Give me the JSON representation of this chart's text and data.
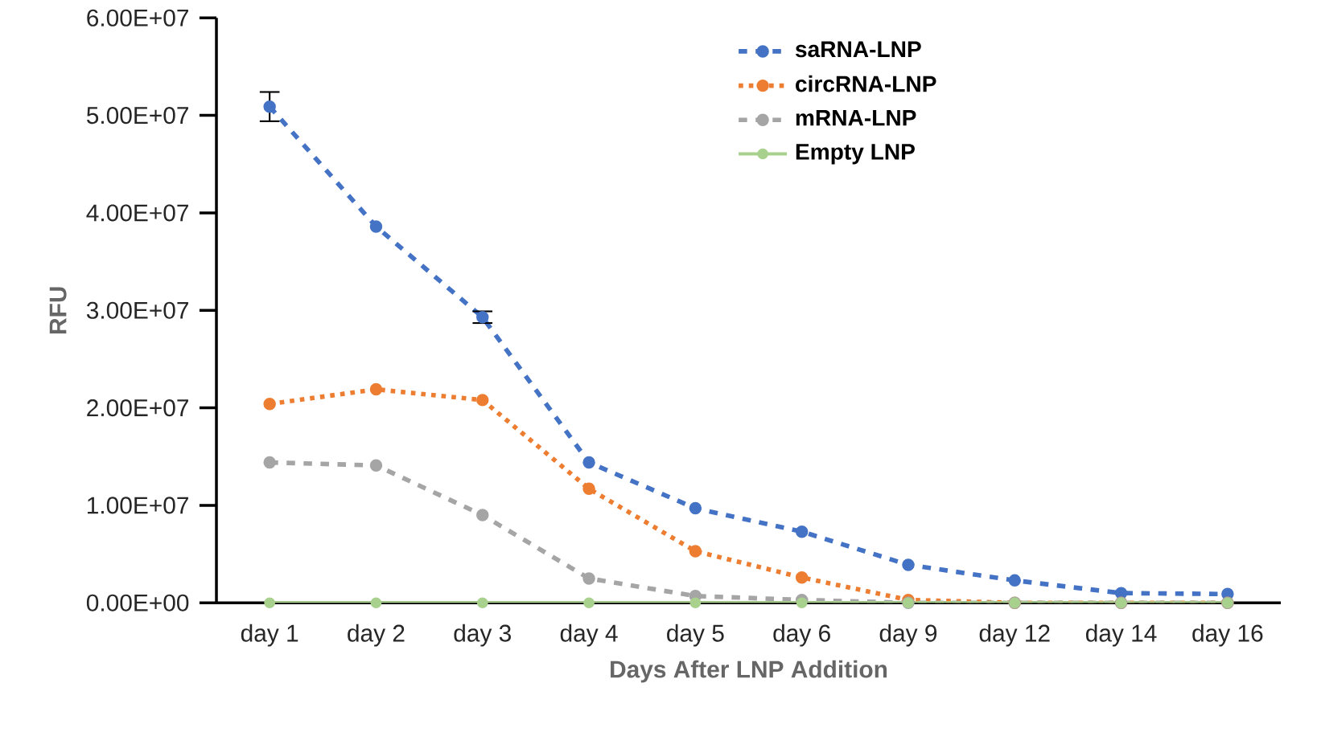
{
  "chart_data": {
    "type": "line",
    "xlabel": "Days After LNP Addition",
    "ylabel": "RFU",
    "categories": [
      "day 1",
      "day 2",
      "day 3",
      "day 4",
      "day 5",
      "day 6",
      "day 9",
      "day 12",
      "day 14",
      "day 16"
    ],
    "series": [
      {
        "name": "saRNA-LNP",
        "color": "#4472c4",
        "line_style": "dashed",
        "values": [
          50900000,
          38600000,
          29300000,
          14400000,
          9700000,
          7300000,
          3900000,
          2300000,
          1000000,
          900000
        ],
        "errors": [
          1500000,
          null,
          600000,
          null,
          null,
          null,
          null,
          null,
          null,
          null
        ]
      },
      {
        "name": "circRNA-LNP",
        "color": "#ed7d31",
        "line_style": "dotted",
        "values": [
          20400000,
          21900000,
          20800000,
          11700000,
          5300000,
          2600000,
          300000,
          0,
          0,
          0
        ]
      },
      {
        "name": "mRNA-LNP",
        "color": "#a5a5a5",
        "line_style": "dashed",
        "values": [
          14400000,
          14100000,
          9000000,
          2500000,
          700000,
          300000,
          0,
          0,
          0,
          0
        ]
      },
      {
        "name": "Empty LNP",
        "color": "#a9d18e",
        "line_style": "solid",
        "values": [
          0,
          0,
          0,
          0,
          0,
          0,
          0,
          0,
          0,
          0
        ]
      }
    ],
    "ylim": [
      0,
      60000000
    ],
    "yticks": [
      {
        "value": 0,
        "label": "0.00E+00"
      },
      {
        "value": 10000000,
        "label": "1.00E+07"
      },
      {
        "value": 20000000,
        "label": "2.00E+07"
      },
      {
        "value": 30000000,
        "label": "3.00E+07"
      },
      {
        "value": 40000000,
        "label": "4.00E+07"
      },
      {
        "value": 50000000,
        "label": "5.00E+07"
      },
      {
        "value": 60000000,
        "label": "6.00E+07"
      }
    ],
    "grid": false,
    "legend": "top right",
    "marker": "circle"
  }
}
